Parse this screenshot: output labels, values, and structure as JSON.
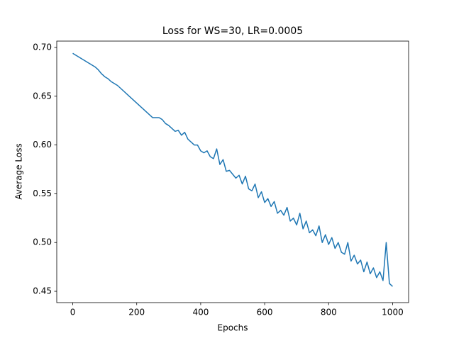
{
  "chart_data": {
    "type": "line",
    "title": "Loss for WS=30, LR=0.0005",
    "xlabel": "Epochs",
    "ylabel": "Average Loss",
    "x": [
      0,
      10,
      20,
      30,
      40,
      50,
      60,
      70,
      80,
      90,
      100,
      110,
      120,
      130,
      140,
      150,
      160,
      170,
      180,
      190,
      200,
      210,
      220,
      230,
      240,
      250,
      260,
      270,
      280,
      290,
      300,
      310,
      320,
      330,
      340,
      350,
      360,
      370,
      380,
      390,
      400,
      410,
      420,
      430,
      440,
      450,
      460,
      470,
      480,
      490,
      500,
      510,
      520,
      530,
      540,
      550,
      560,
      570,
      580,
      590,
      600,
      610,
      620,
      630,
      640,
      650,
      660,
      670,
      680,
      690,
      700,
      710,
      720,
      730,
      740,
      750,
      760,
      770,
      780,
      790,
      800,
      810,
      820,
      830,
      840,
      850,
      860,
      870,
      880,
      890,
      900,
      910,
      920,
      930,
      940,
      950,
      960,
      970,
      980,
      990,
      1000
    ],
    "series": [
      {
        "name": "loss",
        "color": "#1f77b4",
        "values": [
          0.694,
          0.692,
          0.69,
          0.688,
          0.686,
          0.684,
          0.682,
          0.68,
          0.677,
          0.673,
          0.67,
          0.668,
          0.665,
          0.663,
          0.661,
          0.658,
          0.655,
          0.652,
          0.649,
          0.646,
          0.643,
          0.64,
          0.637,
          0.634,
          0.631,
          0.628,
          0.628,
          0.628,
          0.626,
          0.622,
          0.62,
          0.617,
          0.614,
          0.615,
          0.61,
          0.613,
          0.606,
          0.603,
          0.6,
          0.6,
          0.594,
          0.592,
          0.594,
          0.588,
          0.586,
          0.596,
          0.58,
          0.585,
          0.573,
          0.574,
          0.57,
          0.566,
          0.569,
          0.56,
          0.568,
          0.555,
          0.553,
          0.56,
          0.546,
          0.552,
          0.541,
          0.545,
          0.537,
          0.542,
          0.53,
          0.533,
          0.528,
          0.536,
          0.522,
          0.525,
          0.518,
          0.53,
          0.514,
          0.522,
          0.51,
          0.513,
          0.507,
          0.517,
          0.5,
          0.508,
          0.498,
          0.505,
          0.494,
          0.5,
          0.49,
          0.488,
          0.5,
          0.481,
          0.487,
          0.478,
          0.482,
          0.47,
          0.48,
          0.468,
          0.474,
          0.464,
          0.47,
          0.461,
          0.5,
          0.458,
          0.455
        ]
      }
    ],
    "xlim": [
      -50,
      1050
    ],
    "xticks": [
      0,
      200,
      400,
      600,
      800,
      1000
    ],
    "ylim": [
      0.4384,
      0.7065
    ],
    "yticks": [
      0.45,
      {
        "value": 0.5,
        "label": "0.50"
      },
      0.55,
      {
        "value": 0.6,
        "label": "0.60"
      },
      0.65,
      {
        "value": 0.7,
        "label": "0.70"
      }
    ]
  }
}
